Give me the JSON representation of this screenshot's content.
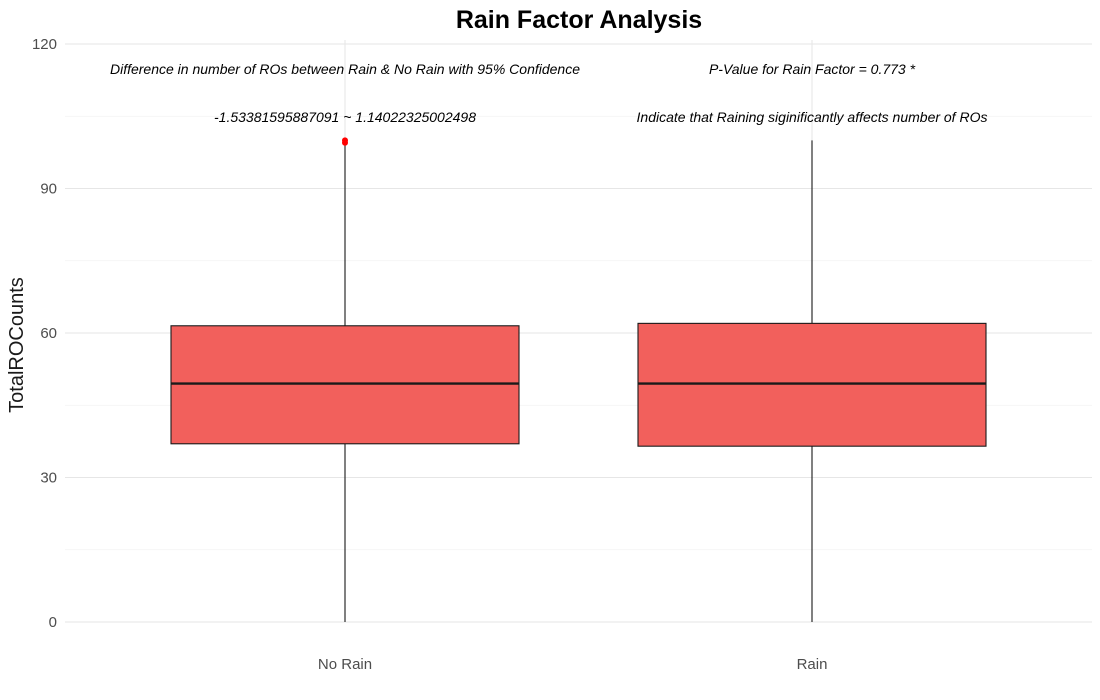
{
  "colors": {
    "box_fill": "#F2605C",
    "box_border": "#1a1a1a",
    "median_line": "#1a1a1a",
    "whisker": "#1a1a1a",
    "outlier": "#FF0000"
  },
  "chart_data": {
    "type": "boxplot",
    "title": "Rain Factor Analysis",
    "xlabel": "",
    "ylabel": "TotalROCounts",
    "ylim": [
      0,
      120
    ],
    "yticks": [
      "0",
      "30",
      "60",
      "90",
      "120"
    ],
    "ytick_values": [
      0,
      30,
      60,
      90,
      120
    ],
    "grid": true,
    "legend": "none",
    "categories": [
      "No Rain",
      "Rain"
    ],
    "boxes": [
      {
        "category": "No Rain",
        "whisker_low": 0,
        "q1": 37,
        "median": 49.5,
        "q3": 61.5,
        "whisker_high": 99,
        "outliers": [
          99.5,
          100
        ]
      },
      {
        "category": "Rain",
        "whisker_low": 0,
        "q1": 36.5,
        "median": 49.5,
        "q3": 62,
        "whisker_high": 100,
        "outliers": []
      }
    ],
    "annotations": [
      "Difference in number of ROs between Rain & No Rain with 95% Confidence",
      "-1.53381595887091  ~  1.14022325002498",
      "P-Value for Rain Factor =  0.773 *",
      "Indicate that Raining siginificantly affects number of ROs"
    ]
  }
}
